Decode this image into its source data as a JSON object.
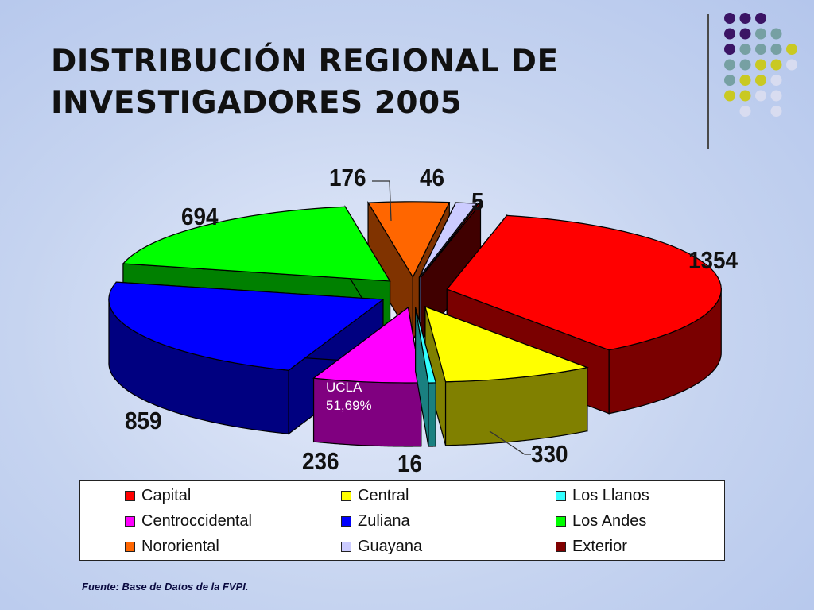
{
  "slide": {
    "title_line1": "DISTRIBUCIÓN REGIONAL DE",
    "title_line2": "INVESTIGADORES 2005",
    "source": "Fuente: Base de Datos de la FVPI.",
    "annotation_line1": "UCLA",
    "annotation_line2": "51,69%"
  },
  "chart_data": {
    "type": "pie",
    "title": "DISTRIBUCIÓN REGIONAL DE INVESTIGADORES 2005",
    "exploded": true,
    "three_d": true,
    "legend_position": "bottom",
    "categories": [
      "Capital",
      "Central",
      "Los Llanos",
      "Centroccidental",
      "Zuliana",
      "Los Andes",
      "Nororiental",
      "Guayana",
      "Exterior"
    ],
    "values": [
      1354,
      330,
      16,
      236,
      859,
      694,
      176,
      46,
      5
    ],
    "colors": [
      "#ff0000",
      "#ffff00",
      "#33ffff",
      "#ff00ff",
      "#0000ff",
      "#00ff00",
      "#ff6600",
      "#ccccff",
      "#800000"
    ],
    "side_colors": [
      "#7a0000",
      "#808000",
      "#1a8080",
      "#800080",
      "#000080",
      "#008000",
      "#803300",
      "#6666a0",
      "#400000"
    ],
    "data_labels": [
      "1354",
      "330",
      "16",
      "236",
      "859",
      "694",
      "176",
      "46",
      "5"
    ]
  },
  "decoration": {
    "dot_colors": [
      "#3b1465",
      "#76a0a3",
      "#c9c922",
      "#d8dcf0"
    ]
  }
}
